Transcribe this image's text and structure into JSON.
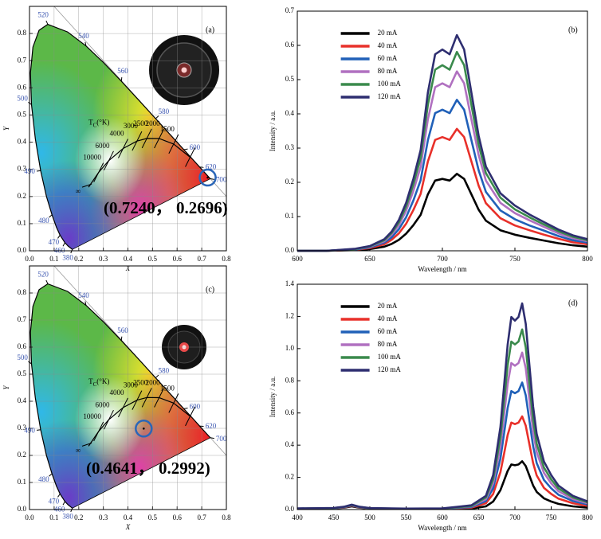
{
  "chart_data": [
    {
      "type": "cie",
      "panel_label": "(a)",
      "xlabel": "X",
      "ylabel": "Y",
      "xlim": [
        0,
        0.8
      ],
      "ylim": [
        0,
        0.9
      ],
      "xticks": [
        {
          "value": 0,
          "label": "0.0"
        },
        0.1,
        0.2,
        0.3,
        0.4,
        0.5,
        0.6,
        0.7,
        0.8
      ],
      "yticks": [
        {
          "value": 0,
          "label": "0.0"
        },
        0.1,
        0.2,
        0.3,
        0.4,
        0.5,
        0.6,
        0.7,
        0.8
      ],
      "grid": true,
      "locus_labels": [
        "380",
        null,
        "460",
        "470",
        null,
        "480",
        null,
        "490",
        null,
        "500",
        null,
        null,
        null,
        "520",
        null,
        "540",
        null,
        "560",
        null,
        "580",
        null,
        "600",
        null,
        "620",
        null,
        "700"
      ],
      "locus_x": [
        0.1741,
        0.1566,
        0.144,
        0.1241,
        0.1096,
        0.0913,
        0.0687,
        0.0454,
        0.0235,
        0.0082,
        0.0039,
        0.0139,
        0.0389,
        0.0743,
        0.1547,
        0.2296,
        0.3016,
        0.3731,
        0.4441,
        0.5125,
        0.5752,
        0.627,
        0.6658,
        0.6915,
        0.719,
        0.7347
      ],
      "locus_y": [
        0.005,
        0.0177,
        0.0297,
        0.0578,
        0.0868,
        0.1327,
        0.2007,
        0.295,
        0.4127,
        0.5384,
        0.6548,
        0.7502,
        0.812,
        0.8338,
        0.8059,
        0.7543,
        0.6923,
        0.6245,
        0.5547,
        0.4866,
        0.4242,
        0.3725,
        0.334,
        0.3083,
        0.2809,
        0.2653
      ],
      "planck_labels": [
        "∞",
        "10000",
        "6000",
        "4000",
        "3000",
        "2500",
        "2000",
        "1500",
        null
      ],
      "planck_x": [
        0.2399,
        0.2807,
        0.3221,
        0.3805,
        0.4369,
        0.4769,
        0.5267,
        0.5857,
        0.6528
      ],
      "planck_y": [
        0.2341,
        0.2884,
        0.3318,
        0.3768,
        0.4041,
        0.4137,
        0.4133,
        0.3931,
        0.3444
      ],
      "cct_title": [
        "T",
        "C",
        "(°K)"
      ],
      "point": {
        "x": 0.724,
        "y": 0.2696,
        "label": "(0.7240，  0.2696)"
      }
    },
    {
      "type": "line",
      "panel_label": "(b)",
      "xlabel": "Wavelength / nm",
      "ylabel": "Intensity / a.u.",
      "xlim": [
        600,
        800
      ],
      "xticks": [
        600,
        650,
        700,
        750,
        800
      ],
      "ylim": [
        0,
        0.7
      ],
      "yticks": [
        {
          "value": 0,
          "label": "0.0"
        },
        0.1,
        0.2,
        0.3,
        0.4,
        0.5,
        0.6,
        0.7
      ],
      "grid": false,
      "legend": "upper left",
      "x": [
        600,
        620,
        640,
        650,
        660,
        665,
        670,
        675,
        680,
        685,
        690,
        695,
        700,
        705,
        710,
        715,
        720,
        725,
        730,
        740,
        750,
        760,
        770,
        780,
        790,
        800
      ],
      "series": [
        {
          "name": "20 mA",
          "color": "#000000",
          "values": [
            0,
            0,
            0.002,
            0.005,
            0.012,
            0.02,
            0.032,
            0.05,
            0.075,
            0.105,
            0.165,
            0.205,
            0.21,
            0.205,
            0.225,
            0.21,
            0.165,
            0.12,
            0.088,
            0.06,
            0.047,
            0.038,
            0.03,
            0.022,
            0.016,
            0.012
          ]
        },
        {
          "name": "40 mA",
          "color": "#e8302a",
          "values": [
            0,
            0,
            0.003,
            0.008,
            0.019,
            0.032,
            0.051,
            0.079,
            0.119,
            0.166,
            0.261,
            0.324,
            0.332,
            0.324,
            0.356,
            0.332,
            0.261,
            0.19,
            0.139,
            0.095,
            0.074,
            0.06,
            0.047,
            0.035,
            0.025,
            0.019
          ]
        },
        {
          "name": "60 mA",
          "color": "#2060b8",
          "values": [
            0,
            0,
            0.004,
            0.01,
            0.024,
            0.039,
            0.063,
            0.098,
            0.147,
            0.206,
            0.323,
            0.402,
            0.412,
            0.402,
            0.441,
            0.412,
            0.323,
            0.235,
            0.172,
            0.118,
            0.092,
            0.074,
            0.059,
            0.043,
            0.031,
            0.024
          ]
        },
        {
          "name": "80 mA",
          "color": "#b070c0",
          "values": [
            0,
            0,
            0.005,
            0.012,
            0.028,
            0.047,
            0.075,
            0.117,
            0.175,
            0.245,
            0.384,
            0.478,
            0.489,
            0.478,
            0.524,
            0.489,
            0.384,
            0.28,
            0.205,
            0.14,
            0.11,
            0.089,
            0.07,
            0.051,
            0.037,
            0.028
          ]
        },
        {
          "name": "100 mA",
          "color": "#3a8a4c",
          "values": [
            0,
            0,
            0.005,
            0.013,
            0.031,
            0.052,
            0.083,
            0.129,
            0.194,
            0.271,
            0.426,
            0.529,
            0.542,
            0.529,
            0.581,
            0.542,
            0.426,
            0.31,
            0.227,
            0.155,
            0.121,
            0.098,
            0.077,
            0.057,
            0.041,
            0.031
          ]
        },
        {
          "name": "120 mA",
          "color": "#2e2e70",
          "values": [
            0,
            0,
            0.006,
            0.014,
            0.034,
            0.056,
            0.09,
            0.14,
            0.21,
            0.294,
            0.462,
            0.574,
            0.588,
            0.574,
            0.63,
            0.588,
            0.462,
            0.336,
            0.246,
            0.168,
            0.132,
            0.106,
            0.084,
            0.062,
            0.045,
            0.034
          ]
        }
      ]
    },
    {
      "type": "cie",
      "panel_label": "(c)",
      "xlabel": "X",
      "ylabel": "Y",
      "xlim": [
        0,
        0.8
      ],
      "ylim": [
        0,
        0.9
      ],
      "xticks": [
        {
          "value": 0,
          "label": "0.0"
        },
        0.1,
        0.2,
        0.3,
        0.4,
        0.5,
        0.6,
        0.7,
        0.8
      ],
      "yticks": [
        {
          "value": 0,
          "label": "0.0"
        },
        0.1,
        0.2,
        0.3,
        0.4,
        0.5,
        0.6,
        0.7,
        0.8
      ],
      "grid": true,
      "locus_labels": [
        "380",
        null,
        "460",
        "470",
        null,
        "480",
        null,
        "490",
        null,
        "500",
        null,
        null,
        null,
        "520",
        null,
        "540",
        null,
        "560",
        null,
        "580",
        null,
        "600",
        null,
        "620",
        null,
        "700"
      ],
      "locus_x": [
        0.1741,
        0.1566,
        0.144,
        0.1241,
        0.1096,
        0.0913,
        0.0687,
        0.0454,
        0.0235,
        0.0082,
        0.0039,
        0.0139,
        0.0389,
        0.0743,
        0.1547,
        0.2296,
        0.3016,
        0.3731,
        0.4441,
        0.5125,
        0.5752,
        0.627,
        0.6658,
        0.6915,
        0.719,
        0.7347
      ],
      "locus_y": [
        0.005,
        0.0177,
        0.0297,
        0.0578,
        0.0868,
        0.1327,
        0.2007,
        0.295,
        0.4127,
        0.5384,
        0.6548,
        0.7502,
        0.812,
        0.8338,
        0.8059,
        0.7543,
        0.6923,
        0.6245,
        0.5547,
        0.4866,
        0.4242,
        0.3725,
        0.334,
        0.3083,
        0.2809,
        0.2653
      ],
      "planck_labels": [
        "∞",
        "10000",
        "6000",
        "4000",
        "3000",
        "2500",
        "2000",
        "1500",
        null
      ],
      "planck_x": [
        0.2399,
        0.2807,
        0.3221,
        0.3805,
        0.4369,
        0.4769,
        0.5267,
        0.5857,
        0.6528
      ],
      "planck_y": [
        0.2341,
        0.2884,
        0.3318,
        0.3768,
        0.4041,
        0.4137,
        0.4133,
        0.3931,
        0.3444
      ],
      "cct_title": [
        "T",
        "C",
        "(°K)"
      ],
      "point": {
        "x": 0.4641,
        "y": 0.2992,
        "label": "(0.4641，  0.2992)"
      }
    },
    {
      "type": "line",
      "panel_label": "(d)",
      "xlabel": "Wavelength / nm",
      "ylabel": "Intensity / a.u.",
      "xlim": [
        400,
        800
      ],
      "xticks": [
        400,
        450,
        500,
        550,
        600,
        650,
        700,
        750,
        800
      ],
      "ylim": [
        0,
        1.4
      ],
      "yticks": [
        {
          "value": 0,
          "label": "0.0"
        },
        0.2,
        0.4,
        0.6,
        0.8,
        {
          "value": 1,
          "label": "1.0"
        },
        1.2,
        1.4
      ],
      "grid": false,
      "legend": "upper left",
      "x": [
        400,
        450,
        465,
        475,
        485,
        500,
        550,
        600,
        640,
        660,
        670,
        680,
        685,
        690,
        695,
        700,
        705,
        710,
        715,
        720,
        725,
        730,
        740,
        750,
        760,
        780,
        800
      ],
      "series": [
        {
          "name": "20 mA",
          "color": "#000000",
          "values": [
            0.005,
            0.007,
            0.012,
            0.02,
            0.012,
            0.006,
            0.004,
            0.004,
            0.006,
            0.02,
            0.05,
            0.12,
            0.18,
            0.24,
            0.28,
            0.275,
            0.28,
            0.3,
            0.27,
            0.21,
            0.15,
            0.11,
            0.07,
            0.05,
            0.035,
            0.02,
            0.012
          ]
        },
        {
          "name": "40 mA",
          "color": "#e8302a",
          "values": [
            0.005,
            0.008,
            0.014,
            0.024,
            0.014,
            0.007,
            0.004,
            0.005,
            0.012,
            0.039,
            0.097,
            0.232,
            0.347,
            0.463,
            0.54,
            0.531,
            0.54,
            0.579,
            0.521,
            0.405,
            0.29,
            0.212,
            0.135,
            0.097,
            0.068,
            0.039,
            0.023
          ]
        },
        {
          "name": "60 mA",
          "color": "#2060b8",
          "values": [
            0.006,
            0.008,
            0.015,
            0.026,
            0.015,
            0.007,
            0.005,
            0.005,
            0.016,
            0.053,
            0.132,
            0.316,
            0.473,
            0.631,
            0.736,
            0.723,
            0.736,
            0.789,
            0.71,
            0.552,
            0.395,
            0.289,
            0.184,
            0.132,
            0.092,
            0.053,
            0.032
          ]
        },
        {
          "name": "80 mA",
          "color": "#b070c0",
          "values": [
            0.006,
            0.009,
            0.016,
            0.027,
            0.016,
            0.008,
            0.005,
            0.006,
            0.02,
            0.065,
            0.163,
            0.39,
            0.585,
            0.78,
            0.91,
            0.894,
            0.91,
            0.975,
            0.878,
            0.683,
            0.488,
            0.358,
            0.228,
            0.163,
            0.114,
            0.065,
            0.039
          ]
        },
        {
          "name": "100 mA",
          "color": "#3a8a4c",
          "values": [
            0.006,
            0.009,
            0.017,
            0.028,
            0.017,
            0.008,
            0.005,
            0.006,
            0.022,
            0.075,
            0.187,
            0.448,
            0.671,
            0.895,
            1.044,
            1.026,
            1.044,
            1.119,
            1.007,
            0.783,
            0.56,
            0.41,
            0.261,
            0.187,
            0.131,
            0.075,
            0.045
          ]
        },
        {
          "name": "120 mA",
          "color": "#2e2e70",
          "values": [
            0.007,
            0.01,
            0.018,
            0.03,
            0.018,
            0.009,
            0.006,
            0.007,
            0.026,
            0.085,
            0.214,
            0.512,
            0.769,
            1.025,
            1.196,
            1.174,
            1.196,
            1.281,
            1.153,
            0.897,
            0.641,
            0.47,
            0.299,
            0.214,
            0.149,
            0.085,
            0.051
          ]
        }
      ]
    }
  ]
}
